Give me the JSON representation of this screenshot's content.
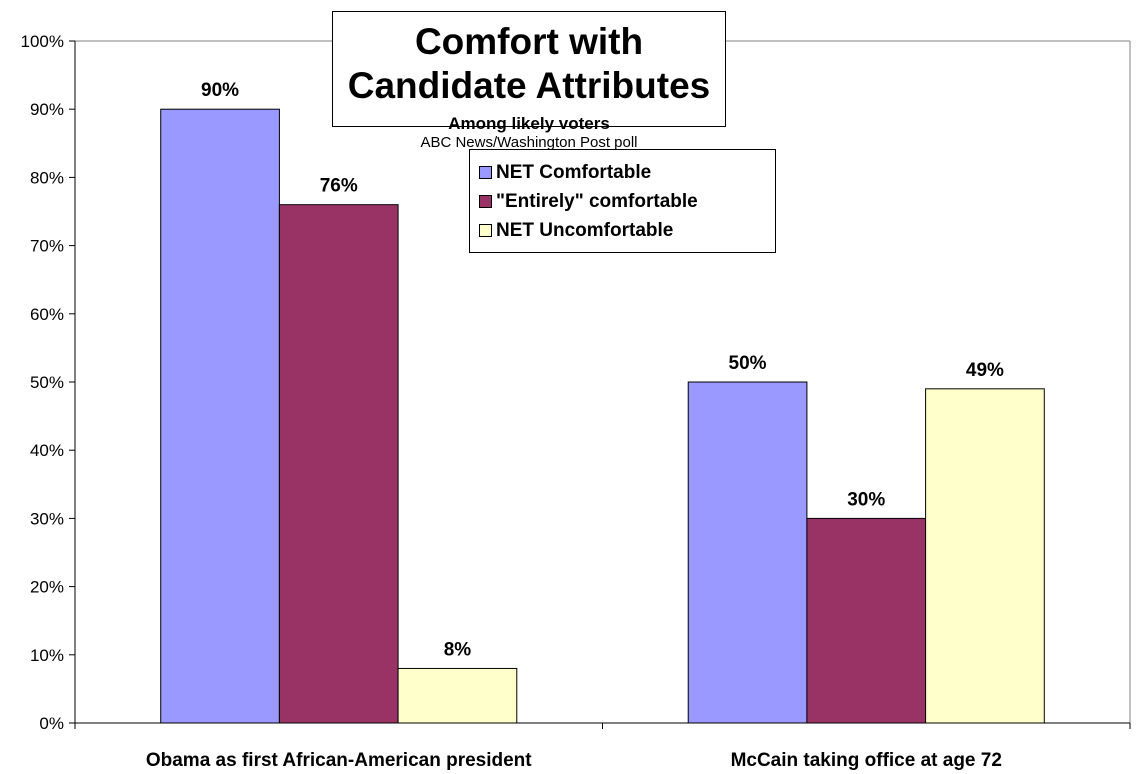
{
  "chart_data": {
    "type": "bar",
    "title": "Comfort with Candidate Attributes",
    "subtitle": "Among likely voters",
    "source": "ABC News/Washington Post poll",
    "categories": [
      "Obama as first African-American president",
      "McCain taking office at age 72"
    ],
    "series": [
      {
        "name": "NET Comfortable",
        "values": [
          90,
          50
        ],
        "color": "#9999ff"
      },
      {
        "name": "\"Entirely\" comfortable",
        "values": [
          76,
          30
        ],
        "color": "#993366"
      },
      {
        "name": "NET Uncomfortable",
        "values": [
          8,
          49
        ],
        "color": "#ffffcc"
      }
    ],
    "data_labels": [
      [
        "90%",
        "50%"
      ],
      [
        "76%",
        "30%"
      ],
      [
        "8%",
        "49%"
      ]
    ],
    "yticks": [
      "0%",
      "10%",
      "20%",
      "30%",
      "40%",
      "50%",
      "60%",
      "70%",
      "80%",
      "90%",
      "100%"
    ],
    "ylim": [
      0,
      100
    ],
    "grid": false,
    "legend": "top-center"
  }
}
